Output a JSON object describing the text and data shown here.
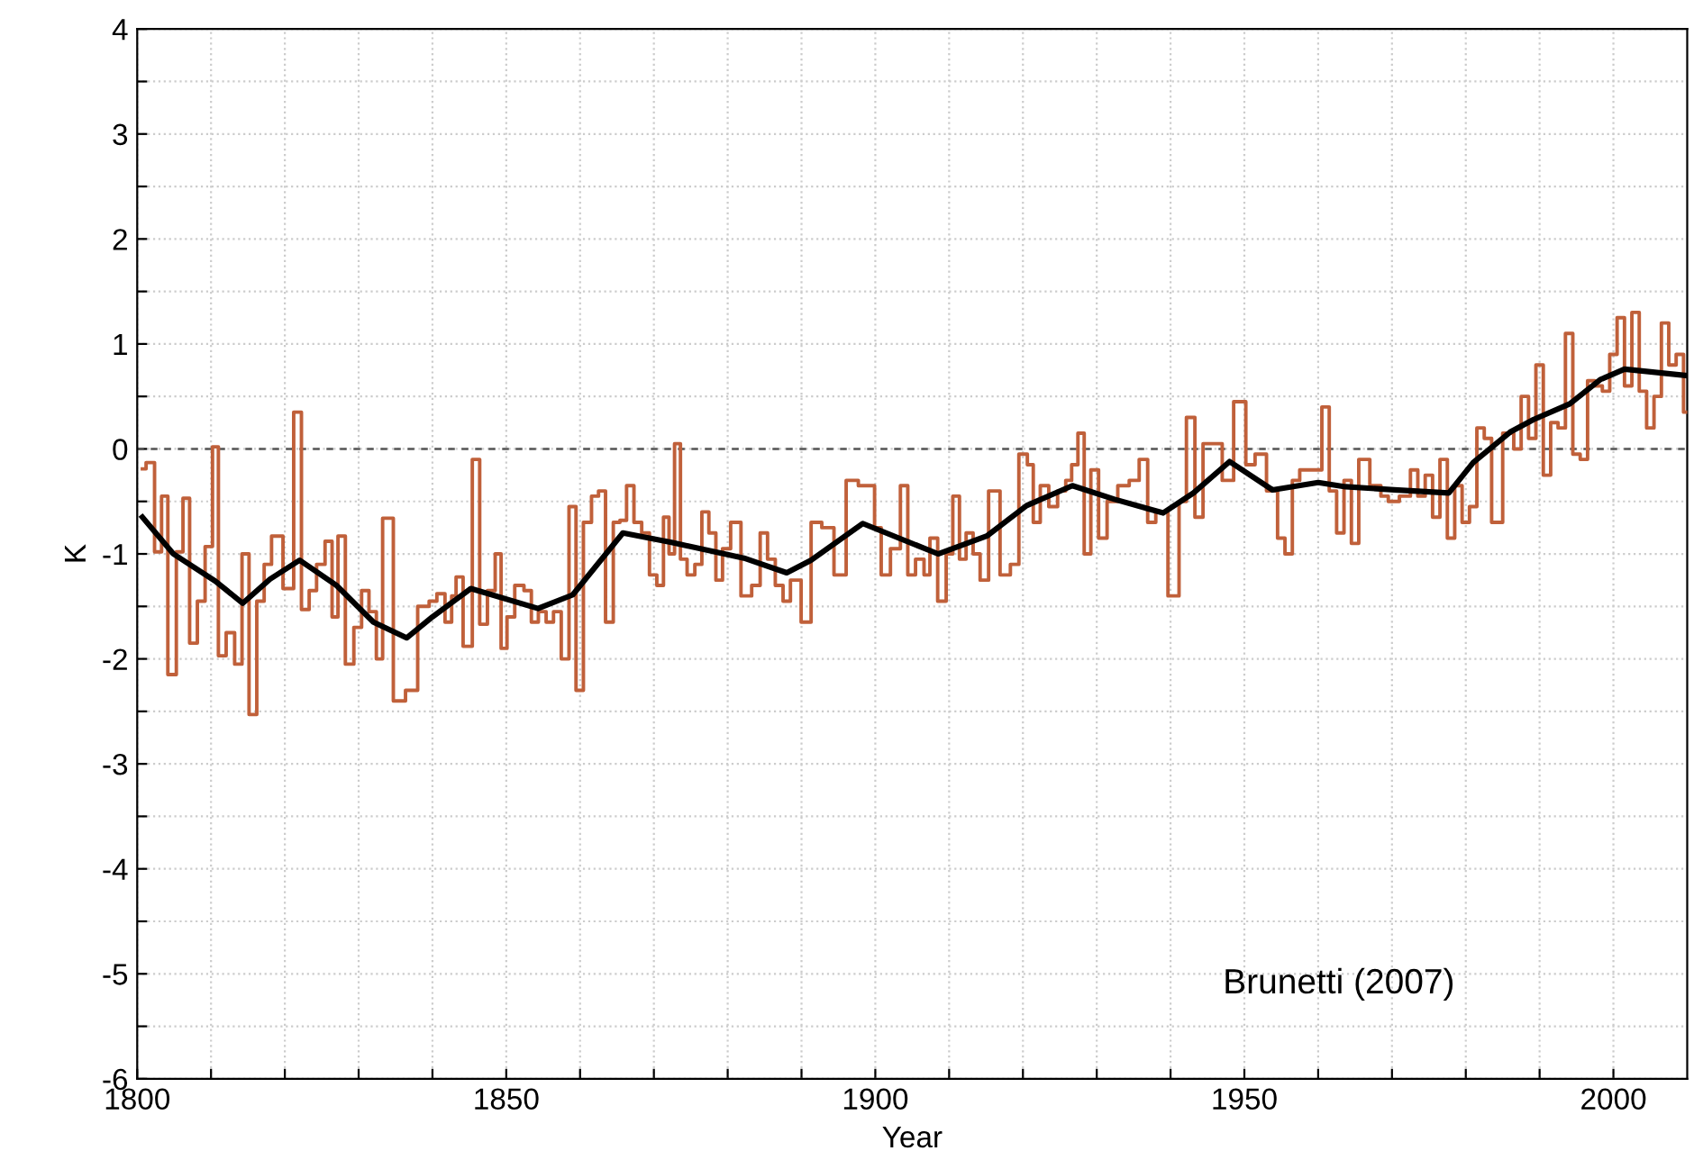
{
  "chart_data": {
    "type": "step",
    "xlabel": "Year",
    "ylabel": "K",
    "xlim": [
      1800,
      2010
    ],
    "ylim": [
      -6,
      4
    ],
    "xticks": [
      1800,
      {
        "value": 1810,
        "label": null
      },
      {
        "value": 1820,
        "label": null
      },
      {
        "value": 1830,
        "label": null
      },
      {
        "value": 1840,
        "label": null
      },
      1850,
      {
        "value": 1860,
        "label": null
      },
      {
        "value": 1870,
        "label": null
      },
      {
        "value": 1880,
        "label": null
      },
      {
        "value": 1890,
        "label": null
      },
      1900,
      {
        "value": 1910,
        "label": null
      },
      {
        "value": 1920,
        "label": null
      },
      {
        "value": 1930,
        "label": null
      },
      {
        "value": 1940,
        "label": null
      },
      1950,
      {
        "value": 1960,
        "label": null
      },
      {
        "value": 1970,
        "label": null
      },
      {
        "value": 1980,
        "label": null
      },
      {
        "value": 1990,
        "label": null
      },
      2000
    ],
    "yticks": [
      -6,
      {
        "value": -5.5,
        "label": null
      },
      -5,
      {
        "value": -4.5,
        "label": null
      },
      -4,
      {
        "value": -3.5,
        "label": null
      },
      -3,
      {
        "value": -2.5,
        "label": null
      },
      -2,
      {
        "value": -1.5,
        "label": null
      },
      -1,
      {
        "value": -0.5,
        "label": null
      },
      0,
      {
        "value": 0.5,
        "label": null
      },
      1,
      {
        "value": 1.5,
        "label": null
      },
      2,
      {
        "value": 2.5,
        "label": null
      },
      3,
      {
        "value": 3.5,
        "label": null
      },
      4
    ],
    "grid": true,
    "legend": false,
    "ref_lines": [
      {
        "axis": "y",
        "value": 0,
        "color": "#555555",
        "line_style": "dashed"
      }
    ],
    "annotations": [
      "Brunetti (2007)"
    ],
    "series": [
      {
        "color": "#c0603a",
        "x": [
          1800.7,
          1801.7,
          1803.0,
          1803.6,
          1804.7,
          1805.9,
          1806.5,
          1807.7,
          1808.6,
          1809.8,
          1810.6,
          1811.4,
          1812.7,
          1813.7,
          1814.7,
          1815.6,
          1816.8,
          1817.6,
          1818.8,
          1820.7,
          1821.7,
          1822.8,
          1823.8,
          1824.8,
          1826.1,
          1826.7,
          1827.7,
          1828.7,
          1830.0,
          1830.8,
          1832.0,
          1832.8,
          1833.7,
          1835.7,
          1837.0,
          1839.0,
          1840.1,
          1841.1,
          1842.3,
          1842.9,
          1843.5,
          1844.8,
          1846.0,
          1846.8,
          1848.1,
          1848.9,
          1849.7,
          1850.5,
          1851.8,
          1853.0,
          1853.8,
          1854.9,
          1855.9,
          1856.9,
          1858.0,
          1859.0,
          1859.9,
          1861.0,
          1862.1,
          1862.9,
          1864.0,
          1865.0,
          1865.8,
          1866.8,
          1867.8,
          1868.9,
          1869.9,
          1870.9,
          1871.7,
          1872.4,
          1873.2,
          1874.0,
          1875.0,
          1876.1,
          1876.9,
          1878.0,
          1878.8,
          1879.8,
          1881.0,
          1882.6,
          1883.9,
          1884.9,
          1885.9,
          1887.0,
          1888.0,
          1889.0,
          1890.9,
          1891.7,
          1893.8,
          1895.0,
          1897.1,
          1898.3,
          1899.5,
          1900.3,
          1901.3,
          1902.8,
          1904.0,
          1904.8,
          1906.1,
          1907.1,
          1907.7,
          1909.2,
          1910.0,
          1911.0,
          1911.8,
          1912.8,
          1913.7,
          1914.7,
          1916.0,
          1917.8,
          1918.8,
          1920.1,
          1921.1,
          1921.7,
          1923.0,
          1924.0,
          1925.4,
          1926.2,
          1927.0,
          1927.9,
          1928.7,
          1929.7,
          1930.8,
          1932.0,
          1933.7,
          1935.1,
          1936.4,
          1937.4,
          1938.6,
          1940.7,
          1941.6,
          1942.7,
          1943.9,
          1944.9,
          1946.4,
          1947.6,
          1949.5,
          1950.9,
          1952.0,
          1954,
          1955,
          1956,
          1957,
          1958,
          1960,
          1961,
          1962,
          1963,
          1964,
          1965,
          1966,
          1968,
          1969,
          1970,
          1972,
          1973,
          1974,
          1975,
          1976,
          1977,
          1978,
          1979,
          1980,
          1981,
          1982,
          1983,
          1984,
          1986,
          1987,
          1988,
          1989,
          1990,
          1991,
          1992,
          1993,
          1994,
          1995,
          1996,
          1997,
          1998,
          1999,
          2000,
          2001,
          2002,
          2003,
          2004,
          2005,
          2006,
          2007,
          2008,
          2009,
          2010
        ],
        "values": [
          -0.19,
          -0.13,
          -0.98,
          -0.45,
          -2.15,
          -0.98,
          -0.47,
          -1.85,
          -1.45,
          -0.93,
          0.02,
          -1.97,
          -1.75,
          -2.05,
          -1.0,
          -2.53,
          -1.45,
          -1.1,
          -0.83,
          -1.33,
          0.35,
          -1.53,
          -1.35,
          -1.1,
          -0.88,
          -1.6,
          -0.83,
          -2.05,
          -1.7,
          -1.35,
          -1.55,
          -2.0,
          -0.66,
          -2.4,
          -2.3,
          -1.5,
          -1.45,
          -1.38,
          -1.65,
          -1.4,
          -1.22,
          -1.88,
          -0.1,
          -1.67,
          -1.35,
          -1.0,
          -1.9,
          -1.6,
          -1.3,
          -1.35,
          -1.65,
          -1.55,
          -1.65,
          -1.55,
          -2.0,
          -0.55,
          -2.3,
          -0.7,
          -0.45,
          -0.4,
          -1.65,
          -0.7,
          -0.68,
          -0.35,
          -0.7,
          -0.8,
          -1.2,
          -1.3,
          -0.65,
          -1.0,
          0.05,
          -1.05,
          -1.2,
          -1.1,
          -0.6,
          -0.8,
          -1.25,
          -0.95,
          -0.7,
          -1.4,
          -1.3,
          -0.8,
          -1.05,
          -1.3,
          -1.45,
          -1.25,
          -1.65,
          -0.7,
          -0.75,
          -1.2,
          -0.3,
          -0.35,
          -0.35,
          -0.75,
          -1.2,
          -0.95,
          -0.35,
          -1.2,
          -1.05,
          -1.2,
          -0.85,
          -1.45,
          -1.0,
          -0.45,
          -1.05,
          -0.8,
          -1.0,
          -1.25,
          -0.4,
          -1.2,
          -1.1,
          -0.05,
          -0.15,
          -0.7,
          -0.35,
          -0.55,
          -0.4,
          -0.3,
          -0.15,
          0.15,
          -1.0,
          -0.2,
          -0.85,
          -0.5,
          -0.35,
          -0.3,
          -0.1,
          -0.7,
          -0.6,
          -1.4,
          -0.5,
          0.3,
          -0.65,
          0.05,
          0.05,
          -0.3,
          0.45,
          -0.15,
          -0.05,
          -0.4,
          -0.85,
          -1.0,
          -0.3,
          -0.2,
          -0.2,
          0.4,
          -0.4,
          -0.8,
          -0.3,
          -0.9,
          -0.1,
          -0.35,
          -0.45,
          -0.5,
          -0.45,
          -0.2,
          -0.45,
          -0.25,
          -0.65,
          -0.1,
          -0.85,
          -0.35,
          -0.7,
          -0.55,
          0.2,
          0.1,
          -0.7,
          0.15,
          0.0,
          0.5,
          0.1,
          0.8,
          -0.25,
          0.25,
          0.2,
          1.1,
          -0.05,
          -0.1,
          0.65,
          0.6,
          0.55,
          0.9,
          1.25,
          0.6,
          1.3,
          0.55,
          0.2,
          0.5,
          1.2,
          0.8,
          0.9,
          0.35
        ]
      },
      {
        "type": "line",
        "color": "#000000",
        "x": [
          1800.7,
          1804.9,
          1810.6,
          1814.3,
          1818,
          1822,
          1827,
          1832,
          1836.5,
          1840,
          1845.2,
          1854.3,
          1859,
          1865.8,
          1872.4,
          1882.2,
          1888,
          1891.3,
          1898.3,
          1908.5,
          1915.1,
          1920.5,
          1926.7,
          1932.4,
          1939,
          1943.1,
          1948,
          1953.8,
          1960,
          1963.7,
          1970.3,
          1977.7,
          1981,
          1986,
          1989.2,
          1994.1,
          1998.2,
          2001.5,
          2009.8
        ],
        "values": [
          -0.65,
          -1.0,
          -1.26,
          -1.47,
          -1.24,
          -1.06,
          -1.3,
          -1.65,
          -1.8,
          -1.6,
          -1.33,
          -1.52,
          -1.39,
          -0.8,
          -0.89,
          -1.04,
          -1.18,
          -1.06,
          -0.71,
          -1.0,
          -0.83,
          -0.54,
          -0.35,
          -0.48,
          -0.61,
          -0.42,
          -0.12,
          -0.39,
          -0.32,
          -0.36,
          -0.39,
          -0.42,
          -0.13,
          0.16,
          0.28,
          0.43,
          0.66,
          0.76,
          0.7
        ]
      }
    ]
  }
}
